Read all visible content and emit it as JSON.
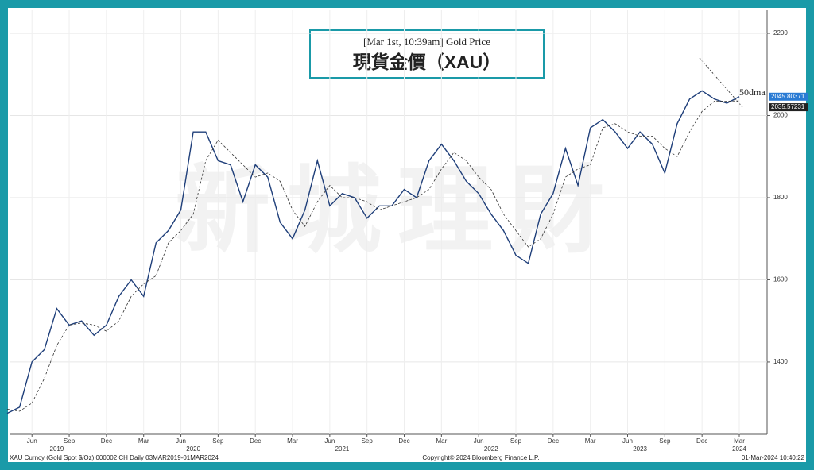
{
  "chart_data": {
    "type": "line",
    "title": "[Mar 1st, 10:39am] Gold Price",
    "subtitle": "現貨金價（XAU）",
    "watermark": "新城理財",
    "footer_left": "XAU Curncy (Gold Spot  $/Oz) 000002 CH  Daily 03MAR2019-01MAR2024",
    "footer_center": "Copyright© 2024 Bloomberg Finance L.P.",
    "footer_right": "01-Mar-2024 10:40:22",
    "x": [
      "2019-04",
      "2019-05",
      "2019-06",
      "2019-07",
      "2019-08",
      "2019-09",
      "2019-10",
      "2019-11",
      "2019-12",
      "2020-01",
      "2020-02",
      "2020-03",
      "2020-04",
      "2020-05",
      "2020-06",
      "2020-07",
      "2020-08",
      "2020-09",
      "2020-10",
      "2020-11",
      "2020-12",
      "2021-01",
      "2021-02",
      "2021-03",
      "2021-04",
      "2021-05",
      "2021-06",
      "2021-07",
      "2021-08",
      "2021-09",
      "2021-10",
      "2021-11",
      "2021-12",
      "2022-01",
      "2022-02",
      "2022-03",
      "2022-04",
      "2022-05",
      "2022-06",
      "2022-07",
      "2022-08",
      "2022-09",
      "2022-10",
      "2022-11",
      "2022-12",
      "2023-01",
      "2023-02",
      "2023-03",
      "2023-04",
      "2023-05",
      "2023-06",
      "2023-07",
      "2023-08",
      "2023-09",
      "2023-10",
      "2023-11",
      "2023-12",
      "2024-01",
      "2024-02",
      "2024-03"
    ],
    "series": [
      {
        "color": "#1f3f7a",
        "values": [
          1275,
          1290,
          1400,
          1430,
          1530,
          1490,
          1500,
          1465,
          1490,
          1560,
          1600,
          1560,
          1690,
          1720,
          1770,
          1960,
          1960,
          1890,
          1880,
          1790,
          1880,
          1850,
          1740,
          1700,
          1770,
          1890,
          1780,
          1810,
          1800,
          1750,
          1780,
          1780,
          1820,
          1800,
          1890,
          1930,
          1890,
          1840,
          1810,
          1760,
          1720,
          1660,
          1640,
          1760,
          1810,
          1920,
          1830,
          1970,
          1990,
          1960,
          1920,
          1960,
          1930,
          1860,
          1980,
          2040,
          2060,
          2040,
          2030,
          2045.80371
        ]
      },
      {
        "name": "50dma",
        "color": "#333333",
        "values": [
          1285,
          1280,
          1300,
          1360,
          1440,
          1490,
          1495,
          1490,
          1475,
          1500,
          1560,
          1590,
          1610,
          1690,
          1720,
          1760,
          1890,
          1940,
          1910,
          1880,
          1850,
          1860,
          1840,
          1770,
          1730,
          1790,
          1830,
          1800,
          1800,
          1790,
          1770,
          1780,
          1790,
          1800,
          1820,
          1870,
          1910,
          1890,
          1850,
          1820,
          1760,
          1720,
          1680,
          1700,
          1760,
          1850,
          1870,
          1880,
          1970,
          1980,
          1960,
          1950,
          1950,
          1920,
          1900,
          1960,
          2010,
          2035,
          2035,
          2035.57231
        ]
      }
    ],
    "ylim": [
      1224,
      2258
    ],
    "yticks": [
      1400,
      1600,
      1800,
      2000,
      2200
    ],
    "xticks": [
      {
        "value": "2019-06",
        "label": "Jun"
      },
      {
        "value": "2019-09",
        "label": "Sep"
      },
      {
        "value": "2019-12",
        "label": "Dec"
      },
      {
        "value": "2020-03",
        "label": "Mar"
      },
      {
        "value": "2020-06",
        "label": "Jun"
      },
      {
        "value": "2020-09",
        "label": "Sep"
      },
      {
        "value": "2020-12",
        "label": "Dec"
      },
      {
        "value": "2021-03",
        "label": "Mar"
      },
      {
        "value": "2021-06",
        "label": "Jun"
      },
      {
        "value": "2021-09",
        "label": "Sep"
      },
      {
        "value": "2021-12",
        "label": "Dec"
      },
      {
        "value": "2022-03",
        "label": "Mar"
      },
      {
        "value": "2022-06",
        "label": "Jun"
      },
      {
        "value": "2022-09",
        "label": "Sep"
      },
      {
        "value": "2022-12",
        "label": "Dec"
      },
      {
        "value": "2023-03",
        "label": "Mar"
      },
      {
        "value": "2023-06",
        "label": "Jun"
      },
      {
        "value": "2023-09",
        "label": "Sep"
      },
      {
        "value": "2023-12",
        "label": "Dec"
      },
      {
        "value": "2024-03",
        "label": "Mar"
      }
    ],
    "xyears": [
      {
        "value": "2019-08",
        "label": "2019"
      },
      {
        "value": "2020-07",
        "label": "2020"
      },
      {
        "value": "2021-07",
        "label": "2021"
      },
      {
        "value": "2022-07",
        "label": "2022"
      },
      {
        "value": "2023-07",
        "label": "2023"
      },
      {
        "value": "2024-03",
        "label": "2024"
      }
    ],
    "grid": true
  }
}
